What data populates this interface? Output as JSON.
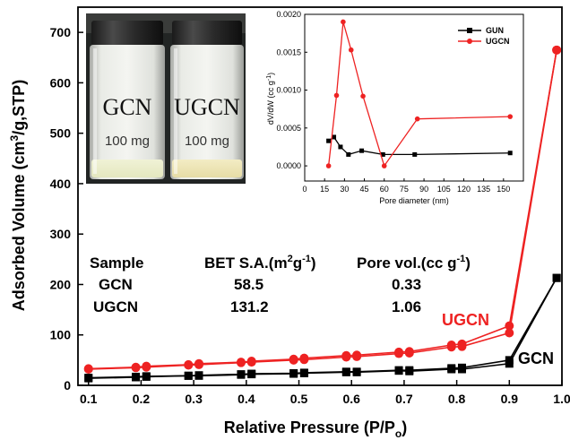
{
  "chart_data": [
    {
      "type": "line",
      "xlabel": "Relative Pressure (P/P",
      "xlabel_sub": "o",
      "xlabel_close": ")",
      "ylabel": "Adsorbed Volume (cm",
      "ylabel_sup": "3",
      "ylabel_close": "/g,STP)",
      "xlim": [
        0.08,
        1.0
      ],
      "ylim": [
        0,
        750
      ],
      "xticks": [
        "0.1",
        "0.2",
        "0.3",
        "0.4",
        "0.5",
        "0.6",
        "0.7",
        "0.8",
        "0.9",
        "1.0"
      ],
      "yticks": [
        "0",
        "100",
        "200",
        "300",
        "400",
        "500",
        "600",
        "700"
      ],
      "series": [
        {
          "name": "GCN",
          "color": "#000000",
          "marker": "square",
          "adsorption": [
            [
              0.1,
              15
            ],
            [
              0.19,
              17
            ],
            [
              0.21,
              18
            ],
            [
              0.29,
              19
            ],
            [
              0.31,
              20
            ],
            [
              0.39,
              22
            ],
            [
              0.41,
              23
            ],
            [
              0.49,
              24
            ],
            [
              0.51,
              25
            ],
            [
              0.59,
              27
            ],
            [
              0.61,
              27
            ],
            [
              0.69,
              30
            ],
            [
              0.71,
              30
            ],
            [
              0.79,
              34
            ],
            [
              0.81,
              35
            ],
            [
              0.9,
              50
            ],
            [
              0.99,
              213
            ]
          ],
          "desorption": [
            [
              0.99,
              213
            ],
            [
              0.9,
              43
            ],
            [
              0.81,
              32
            ],
            [
              0.79,
              32
            ],
            [
              0.71,
              28
            ],
            [
              0.69,
              29
            ],
            [
              0.61,
              26
            ],
            [
              0.59,
              26
            ],
            [
              0.51,
              24
            ],
            [
              0.49,
              23
            ],
            [
              0.41,
              22
            ],
            [
              0.39,
              21
            ],
            [
              0.31,
              19
            ],
            [
              0.29,
              19
            ],
            [
              0.21,
              17
            ],
            [
              0.19,
              16
            ],
            [
              0.1,
              14
            ]
          ]
        },
        {
          "name": "UGCN",
          "color": "#ee2222",
          "marker": "circle",
          "adsorption": [
            [
              0.1,
              33
            ],
            [
              0.19,
              36
            ],
            [
              0.21,
              38
            ],
            [
              0.29,
              41
            ],
            [
              0.31,
              43
            ],
            [
              0.39,
              46
            ],
            [
              0.41,
              48
            ],
            [
              0.49,
              52
            ],
            [
              0.51,
              54
            ],
            [
              0.59,
              59
            ],
            [
              0.61,
              60
            ],
            [
              0.69,
              66
            ],
            [
              0.71,
              67
            ],
            [
              0.79,
              80
            ],
            [
              0.81,
              82
            ],
            [
              0.9,
              118
            ],
            [
              0.99,
              665
            ]
          ],
          "desorption": [
            [
              0.99,
              665
            ],
            [
              0.9,
              104
            ],
            [
              0.81,
              77
            ],
            [
              0.79,
              76
            ],
            [
              0.71,
              64
            ],
            [
              0.69,
              63
            ],
            [
              0.61,
              57
            ],
            [
              0.59,
              56
            ],
            [
              0.51,
              51
            ],
            [
              0.49,
              50
            ],
            [
              0.41,
              46
            ],
            [
              0.39,
              45
            ],
            [
              0.31,
              41
            ],
            [
              0.29,
              40
            ],
            [
              0.21,
              36
            ],
            [
              0.19,
              35
            ],
            [
              0.1,
              32
            ]
          ]
        }
      ],
      "series_labels": [
        {
          "text": "UGCN",
          "color": "#ee2222"
        },
        {
          "text": "GCN",
          "color": "#000000"
        }
      ],
      "table": {
        "headers": [
          "Sample",
          "BET S.A.(m",
          "2",
          "g",
          "-1",
          ")",
          "Pore vol.(cc g",
          "-1",
          ")"
        ],
        "rows": [
          {
            "sample": "GCN",
            "bet": "58.5",
            "pore": "0.33"
          },
          {
            "sample": "UGCN",
            "bet": "131.2",
            "pore": "1.06"
          }
        ]
      }
    },
    {
      "type": "line",
      "xlabel": "Pore diameter (nm)",
      "ylabel": "dV/dW (cc g",
      "ylabel_sup": "-1",
      "ylabel_close": ")",
      "xlim": [
        0,
        165
      ],
      "ylim": [
        -0.0002,
        0.002
      ],
      "xticks": [
        "0",
        "15",
        "30",
        "45",
        "60",
        "75",
        "90",
        "105",
        "120",
        "135",
        "150"
      ],
      "yticks": [
        "0.0000",
        "0.0005",
        "0.0010",
        "0.0015",
        "0.0020"
      ],
      "legend_position": "top-right",
      "series": [
        {
          "name": "GUN",
          "color": "#000000",
          "marker": "square",
          "points": [
            [
              18,
              0.00033
            ],
            [
              22,
              0.00038
            ],
            [
              27,
              0.00025
            ],
            [
              33,
              0.00015
            ],
            [
              43,
              0.0002
            ],
            [
              59,
              0.00015
            ],
            [
              83,
              0.00015
            ],
            [
              155,
              0.00017
            ]
          ]
        },
        {
          "name": "UGCN",
          "color": "#ee2222",
          "marker": "circle",
          "points": [
            [
              18,
              0.0
            ],
            [
              24,
              0.00093
            ],
            [
              29,
              0.0019
            ],
            [
              35,
              0.00153
            ],
            [
              44,
              0.00092
            ],
            [
              60,
              0.0
            ],
            [
              85,
              0.00062
            ],
            [
              155,
              0.00065
            ]
          ]
        }
      ]
    }
  ],
  "inset_image": {
    "labels": [
      {
        "name": "GCN",
        "amount": "100 mg"
      },
      {
        "name": "UGCN",
        "amount": "100 mg"
      }
    ]
  }
}
